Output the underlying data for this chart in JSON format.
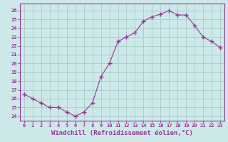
{
  "hours": [
    0,
    1,
    2,
    3,
    4,
    5,
    6,
    7,
    8,
    9,
    10,
    11,
    12,
    13,
    14,
    15,
    16,
    17,
    18,
    19,
    20,
    21,
    22,
    23
  ],
  "values": [
    16.5,
    16.0,
    15.5,
    15.0,
    15.0,
    14.5,
    14.0,
    14.5,
    15.5,
    18.5,
    20.0,
    22.5,
    23.0,
    23.5,
    24.8,
    25.3,
    25.6,
    26.0,
    25.5,
    25.5,
    24.3,
    23.0,
    22.5,
    21.8
  ],
  "line_color": "#993399",
  "marker": "+",
  "marker_size": 4,
  "bg_color": "#cce8e8",
  "grid_color": "#aacccc",
  "tick_color": "#993399",
  "label_color": "#993399",
  "xlabel": "Windchill (Refroidissement éolien,°C)",
  "xlabel_fontsize": 6.5,
  "ytick_labels": [
    "14",
    "15",
    "16",
    "17",
    "18",
    "19",
    "20",
    "21",
    "22",
    "23",
    "24",
    "25",
    "26"
  ],
  "ytick_vals": [
    14,
    15,
    16,
    17,
    18,
    19,
    20,
    21,
    22,
    23,
    24,
    25,
    26
  ],
  "ylim": [
    13.5,
    26.8
  ],
  "xlim": [
    -0.5,
    23.5
  ]
}
